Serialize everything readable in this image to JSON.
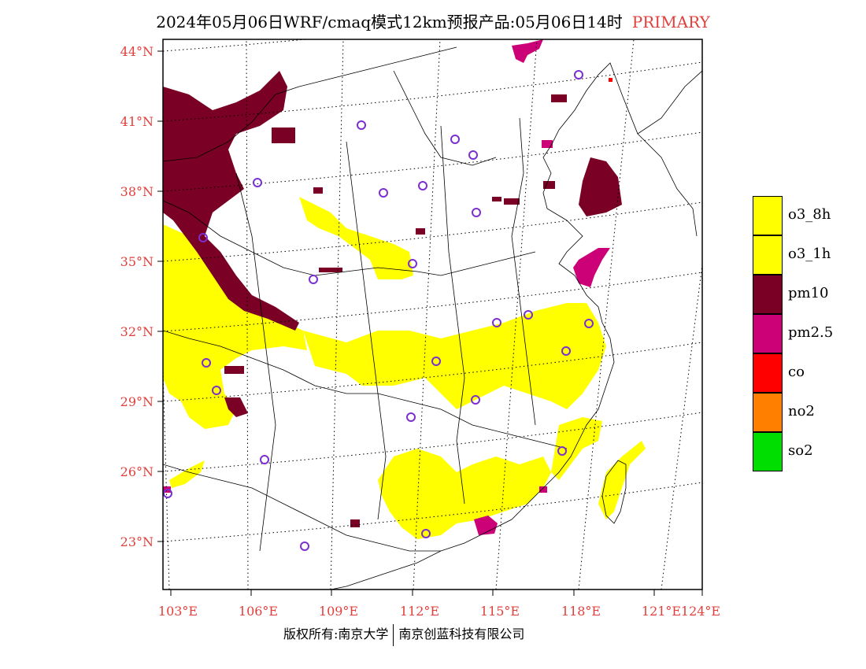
{
  "title": "2024年05月06日WRF/cmaq模式12km预报产品:05月06日14时",
  "title_tag": "PRIMARY",
  "lat_labels": [
    "44°N",
    "41°N",
    "38°N",
    "35°N",
    "32°N",
    "29°N",
    "26°N",
    "23°N"
  ],
  "lon_labels": [
    "103°E",
    "106°E",
    "109°E",
    "112°E",
    "115°E",
    "118°E",
    "121°E",
    "124°E"
  ],
  "legend": [
    {
      "label": "o3_8h",
      "color": "#ffff00"
    },
    {
      "label": "o3_1h",
      "color": "#ffff00"
    },
    {
      "label": "pm10",
      "color": "#7a0026"
    },
    {
      "label": "pm2.5",
      "color": "#cc0077"
    },
    {
      "label": "co",
      "color": "#ff0000"
    },
    {
      "label": "no2",
      "color": "#ff8000"
    },
    {
      "label": "so2",
      "color": "#00dd00"
    }
  ],
  "footer": {
    "left": "版权所有:南京大学",
    "right": "南京创蓝科技有限公司"
  },
  "colors": {
    "axis_label": "#e0403c",
    "station_ring": "#7b2fd0",
    "o3": "#ffff00",
    "pm10": "#7a0026",
    "pm25": "#cc0077"
  }
}
